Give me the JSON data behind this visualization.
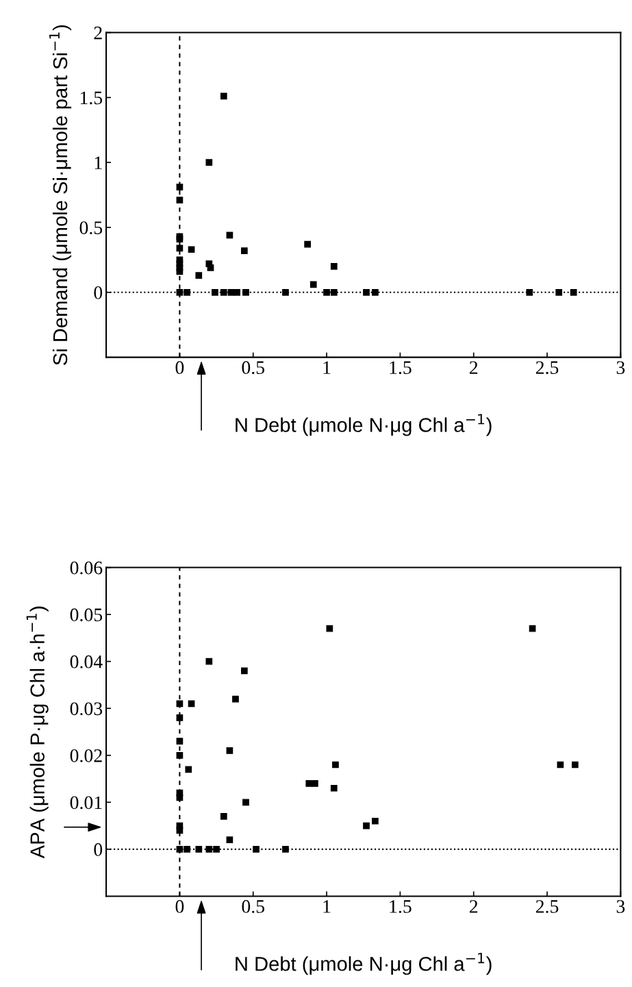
{
  "chart_data": [
    {
      "type": "scatter",
      "xlabel": "N Debt (μmole N·μg Chl a$^{−1}$)",
      "ylabel": "Si Demand (μmole Si·μmole part Si$^{−1}$)",
      "xlim": [
        -0.5,
        3
      ],
      "ylim": [
        -0.5,
        2
      ],
      "xticks": [
        0,
        0.5,
        1,
        1.5,
        2,
        2.5,
        3
      ],
      "yticks": [
        0,
        0.5,
        1,
        1.5,
        2
      ],
      "marker": "square",
      "grid": false,
      "series": [
        {
          "color": "#000000",
          "x": [
            0,
            0,
            0,
            0,
            0,
            0,
            0,
            0,
            0,
            0,
            0.05,
            0.08,
            0.13,
            0.2,
            0.2,
            0.21,
            0.24,
            0.3,
            0.3,
            0.34,
            0.35,
            0.39,
            0.44,
            0.45,
            0.72,
            0.87,
            0.91,
            1.0,
            1.05,
            1.05,
            1.27,
            1.33,
            2.38,
            2.58,
            2.68
          ],
          "values": [
            0.81,
            0.71,
            0.43,
            0.41,
            0.34,
            0.25,
            0.22,
            0.19,
            0.16,
            0,
            0,
            0.33,
            0.13,
            1.0,
            0.22,
            0.19,
            0,
            1.51,
            0,
            0.44,
            0,
            0,
            0.32,
            0,
            0,
            0.37,
            0.06,
            0,
            0.2,
            0,
            0,
            0,
            0,
            0,
            0
          ]
        }
      ],
      "ref_lines": [
        {
          "axis": "x",
          "value": 0,
          "color": "#000000",
          "line_style": "dashed"
        },
        {
          "axis": "y",
          "value": 0,
          "color": "#000000",
          "line_style": "dotted"
        }
      ]
    },
    {
      "type": "scatter",
      "xlabel": "N Debt (μmole N·μg Chl a$^{−1}$)",
      "ylabel": "APA (μmole P·μg Chl a·h$^{−1}$)",
      "xlim": [
        -0.5,
        3
      ],
      "ylim": [
        -0.01,
        0.06
      ],
      "xticks": [
        0,
        0.5,
        1,
        1.5,
        2,
        2.5,
        3
      ],
      "yticks": [
        0,
        0.01,
        0.02,
        0.03,
        0.04,
        0.05,
        0.06
      ],
      "marker": "square",
      "grid": false,
      "series": [
        {
          "color": "#000000",
          "x": [
            0,
            0,
            0,
            0,
            0,
            0,
            0,
            0,
            0,
            0.05,
            0.06,
            0.08,
            0.13,
            0.2,
            0.2,
            0.25,
            0.3,
            0.34,
            0.34,
            0.38,
            0.44,
            0.45,
            0.52,
            0.72,
            0.88,
            0.92,
            1.02,
            1.05,
            1.06,
            1.27,
            1.33,
            2.4,
            2.59,
            2.69
          ],
          "values": [
            0.031,
            0.028,
            0.023,
            0.02,
            0.012,
            0.011,
            0.005,
            0.004,
            0,
            0,
            0.017,
            0.031,
            0,
            0.04,
            0,
            0,
            0.007,
            0.021,
            0.002,
            0.032,
            0.038,
            0.01,
            0,
            0,
            0.014,
            0.014,
            0.047,
            0.013,
            0.018,
            0.005,
            0.006,
            0.047,
            0.018,
            0.018
          ]
        }
      ],
      "ref_lines": [
        {
          "axis": "x",
          "value": 0,
          "color": "#000000",
          "line_style": "dashed"
        },
        {
          "axis": "y",
          "value": 0,
          "color": "#000000",
          "line_style": "dotted"
        }
      ]
    }
  ]
}
